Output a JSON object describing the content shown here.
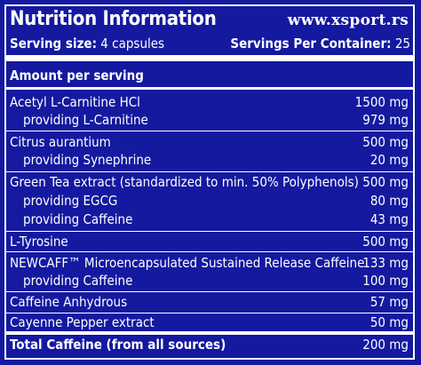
{
  "header": {
    "title": "Nutrition Information",
    "site": "www.xsport.rs",
    "serving_size_label": "Serving size:",
    "serving_size_value": "4 capsules",
    "servings_per_container_label": "Servings Per Container:",
    "servings_per_container_value": "25"
  },
  "amount_header": "Amount per serving",
  "rows": [
    {
      "name": "Acetyl L-Carnitine HCl",
      "value": "1500 mg"
    },
    {
      "name": "providing L-Carnitine",
      "value": "979 mg"
    },
    {
      "name": "Citrus aurantium",
      "value": "500 mg"
    },
    {
      "name": "providing Synephrine",
      "value": "20 mg"
    },
    {
      "name": "Green Tea extract (standardized to min. 50% Polyphenols)",
      "value": "500 mg"
    },
    {
      "name": "providing EGCG",
      "value": "80 mg"
    },
    {
      "name": "providing Caffeine",
      "value": "43 mg"
    },
    {
      "name": "L-Tyrosine",
      "value": "500 mg"
    },
    {
      "name": "NEWCAFF™ Microencapsulated Sustained Release Caffeine",
      "value": "133 mg"
    },
    {
      "name": "providing Caffeine",
      "value": "100 mg"
    },
    {
      "name": "Caffeine Anhydrous",
      "value": "57 mg"
    },
    {
      "name": "Cayenne Pepper extract",
      "value": "50 mg"
    }
  ],
  "total": {
    "name": "Total Caffeine (from all sources)",
    "value": "200 mg"
  },
  "colors": {
    "background": "#1419a0",
    "text": "#ffffff"
  }
}
